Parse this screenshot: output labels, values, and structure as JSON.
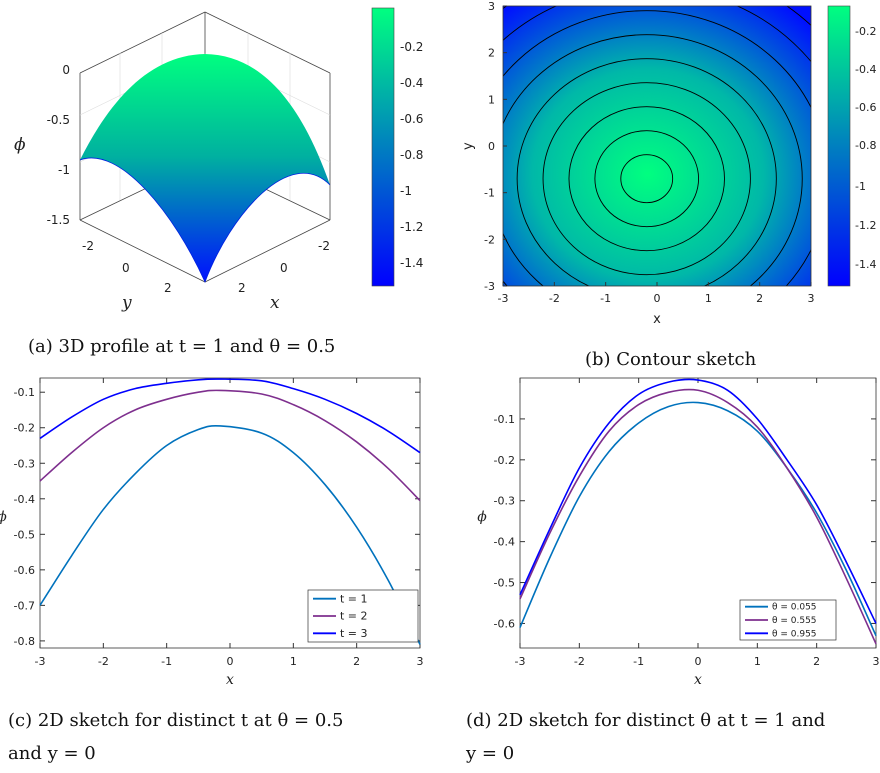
{
  "chart_data": [
    {
      "panel": "a",
      "type": "surface",
      "caption": "(a) 3D profile at t = 1 and θ = 0.5",
      "xlabel": "x",
      "ylabel": "y",
      "zlabel": "ϕ",
      "xticks": [
        "-2",
        "0",
        "2"
      ],
      "yticks": [
        "-2",
        "0",
        "2"
      ],
      "zticks": [
        "0",
        "-0.5",
        "-1",
        "-1.5"
      ],
      "zlim": [
        -1.5,
        0
      ],
      "surface_values": {
        "center": -0.2,
        "edge_midpoint": -0.95,
        "corner": -1.5
      },
      "colorbar": {
        "ticks": [
          "-0.2",
          "-0.4",
          "-0.6",
          "-0.8",
          "-1",
          "-1.2",
          "-1.4"
        ],
        "range": [
          -1.5,
          -0.1
        ]
      },
      "colormap": [
        "#0000ff",
        "#00ff80"
      ]
    },
    {
      "panel": "b",
      "type": "contour",
      "caption": "(b) Contour sketch",
      "xlabel": "x",
      "ylabel": "y",
      "xlim": [
        -3,
        3
      ],
      "ylim": [
        -3,
        3
      ],
      "xticks": [
        "-3",
        "-2",
        "-1",
        "0",
        "1",
        "2",
        "3"
      ],
      "yticks": [
        "3",
        "2",
        "1",
        "0",
        "-1",
        "-2",
        "-3"
      ],
      "center": [
        -0.2,
        -0.7
      ],
      "colorbar": {
        "ticks": [
          "-0.2",
          "-0.4",
          "-0.6",
          "-0.8",
          "-1",
          "-1.2",
          "-1.4"
        ],
        "range": [
          -1.5,
          -0.1
        ]
      },
      "colormap": [
        "#0000ff",
        "#00ff80"
      ]
    },
    {
      "panel": "c",
      "type": "line",
      "caption_line1": "(c) 2D sketch for distinct t at θ = 0.5",
      "caption_line2": "and y = 0",
      "xlabel": "x",
      "ylabel": "ϕ",
      "xlim": [
        -3,
        3
      ],
      "ylim": [
        -0.82,
        -0.06
      ],
      "xticks": [
        "-3",
        "-2",
        "-1",
        "0",
        "1",
        "2",
        "3"
      ],
      "yticks": [
        "-0.1",
        "-0.2",
        "-0.3",
        "-0.4",
        "-0.5",
        "-0.6",
        "-0.7",
        "-0.8"
      ],
      "legend_position": "bottom-right",
      "x": [
        -3,
        -2.5,
        -2,
        -1.5,
        -1,
        -0.5,
        -0.15,
        0.5,
        1,
        1.5,
        2,
        2.5,
        3
      ],
      "series": [
        {
          "name": "t = 1",
          "color": "#0072bd",
          "values": [
            -0.7,
            -0.56,
            -0.43,
            -0.33,
            -0.25,
            -0.205,
            -0.195,
            -0.215,
            -0.27,
            -0.36,
            -0.48,
            -0.63,
            -0.81
          ]
        },
        {
          "name": "t = 2",
          "color": "#7e2f8e",
          "values": [
            -0.35,
            -0.27,
            -0.2,
            -0.15,
            -0.12,
            -0.1,
            -0.095,
            -0.105,
            -0.135,
            -0.18,
            -0.24,
            -0.315,
            -0.405
          ]
        },
        {
          "name": "t = 3",
          "color": "#0000ff",
          "values": [
            -0.23,
            -0.17,
            -0.12,
            -0.09,
            -0.075,
            -0.065,
            -0.063,
            -0.068,
            -0.09,
            -0.12,
            -0.16,
            -0.21,
            -0.27
          ]
        }
      ]
    },
    {
      "panel": "d",
      "type": "line",
      "caption_line1": "(d) 2D sketch for distinct θ at t = 1 and",
      "caption_line2": "y = 0",
      "xlabel": "x",
      "ylabel": "ϕ",
      "xlim": [
        -3,
        3
      ],
      "ylim": [
        -0.66,
        0.0
      ],
      "xticks": [
        "-3",
        "-2",
        "-1",
        "0",
        "1",
        "2",
        "3"
      ],
      "yticks": [
        "-0.1",
        "-0.2",
        "-0.3",
        "-0.4",
        "-0.5",
        "-0.6"
      ],
      "legend_position": "bottom-right",
      "x": [
        -3,
        -2.5,
        -2,
        -1.5,
        -1,
        -0.5,
        0,
        0.5,
        1,
        1.5,
        2,
        2.5,
        3
      ],
      "series": [
        {
          "name": "θ = 0.055",
          "color": "#0072bd",
          "values": [
            -0.61,
            -0.44,
            -0.29,
            -0.18,
            -0.11,
            -0.07,
            -0.06,
            -0.08,
            -0.13,
            -0.22,
            -0.33,
            -0.47,
            -0.63
          ]
        },
        {
          "name": "θ = 0.555",
          "color": "#7e2f8e",
          "values": [
            -0.54,
            -0.38,
            -0.24,
            -0.13,
            -0.065,
            -0.035,
            -0.03,
            -0.06,
            -0.12,
            -0.22,
            -0.34,
            -0.49,
            -0.65
          ]
        },
        {
          "name": "θ = 0.955",
          "color": "#0000ff",
          "values": [
            -0.53,
            -0.37,
            -0.22,
            -0.11,
            -0.04,
            -0.01,
            -0.005,
            -0.03,
            -0.1,
            -0.2,
            -0.31,
            -0.45,
            -0.6
          ]
        }
      ]
    }
  ]
}
